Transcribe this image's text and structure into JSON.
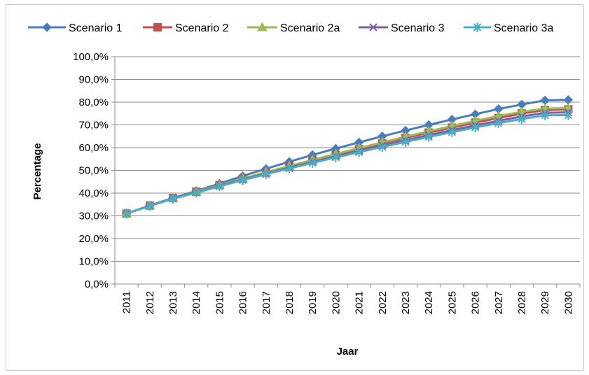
{
  "chart_data": {
    "type": "line",
    "title": "",
    "xlabel": "Jaar",
    "ylabel": "Percentage",
    "ylim": [
      0,
      100
    ],
    "y_ticks": [
      "0,0%",
      "10,0%",
      "20,0%",
      "30,0%",
      "40,0%",
      "50,0%",
      "60,0%",
      "70,0%",
      "80,0%",
      "90,0%",
      "100,0%"
    ],
    "grid": "horizontal",
    "legend_position": "top",
    "categories": [
      "2011",
      "2012",
      "2013",
      "2014",
      "2015",
      "2016",
      "2017",
      "2018",
      "2019",
      "2020",
      "2021",
      "2022",
      "2023",
      "2024",
      "2025",
      "2026",
      "2027",
      "2028",
      "2029",
      "2030"
    ],
    "series": [
      {
        "name": "Scenario 1",
        "color": "#4a7ebb",
        "marker": "diamond",
        "values": [
          31.0,
          34.5,
          37.8,
          41.0,
          44.2,
          47.5,
          50.7,
          53.8,
          56.8,
          59.6,
          62.3,
          65.0,
          67.5,
          70.0,
          72.4,
          74.7,
          77.0,
          79.0,
          80.8,
          81.0
        ]
      },
      {
        "name": "Scenario 2",
        "color": "#c0504d",
        "marker": "square",
        "values": [
          31.0,
          34.5,
          37.8,
          40.6,
          43.5,
          46.3,
          49.0,
          51.7,
          54.3,
          56.8,
          59.3,
          61.8,
          64.2,
          66.6,
          68.8,
          71.0,
          73.0,
          75.0,
          76.5,
          76.8
        ]
      },
      {
        "name": "Scenario 2a",
        "color": "#9bbb59",
        "marker": "triangle",
        "values": [
          31.0,
          34.5,
          37.8,
          40.6,
          43.5,
          46.4,
          49.2,
          51.9,
          54.6,
          57.2,
          59.8,
          62.3,
          64.8,
          67.2,
          69.5,
          71.8,
          73.9,
          75.8,
          77.2,
          77.4
        ]
      },
      {
        "name": "Scenario 3",
        "color": "#7f5fa0",
        "marker": "x",
        "values": [
          31.0,
          34.5,
          37.8,
          40.4,
          43.2,
          46.0,
          48.6,
          51.2,
          53.7,
          56.1,
          58.5,
          60.9,
          63.2,
          65.5,
          67.7,
          69.8,
          71.8,
          73.7,
          75.3,
          75.5
        ]
      },
      {
        "name": "Scenario 3a",
        "color": "#4bacc6",
        "marker": "star",
        "values": [
          31.0,
          34.3,
          37.5,
          40.2,
          43.0,
          45.7,
          48.3,
          50.8,
          53.3,
          55.7,
          58.0,
          60.3,
          62.5,
          64.7,
          66.8,
          68.9,
          70.8,
          72.6,
          74.2,
          74.3
        ]
      }
    ]
  }
}
